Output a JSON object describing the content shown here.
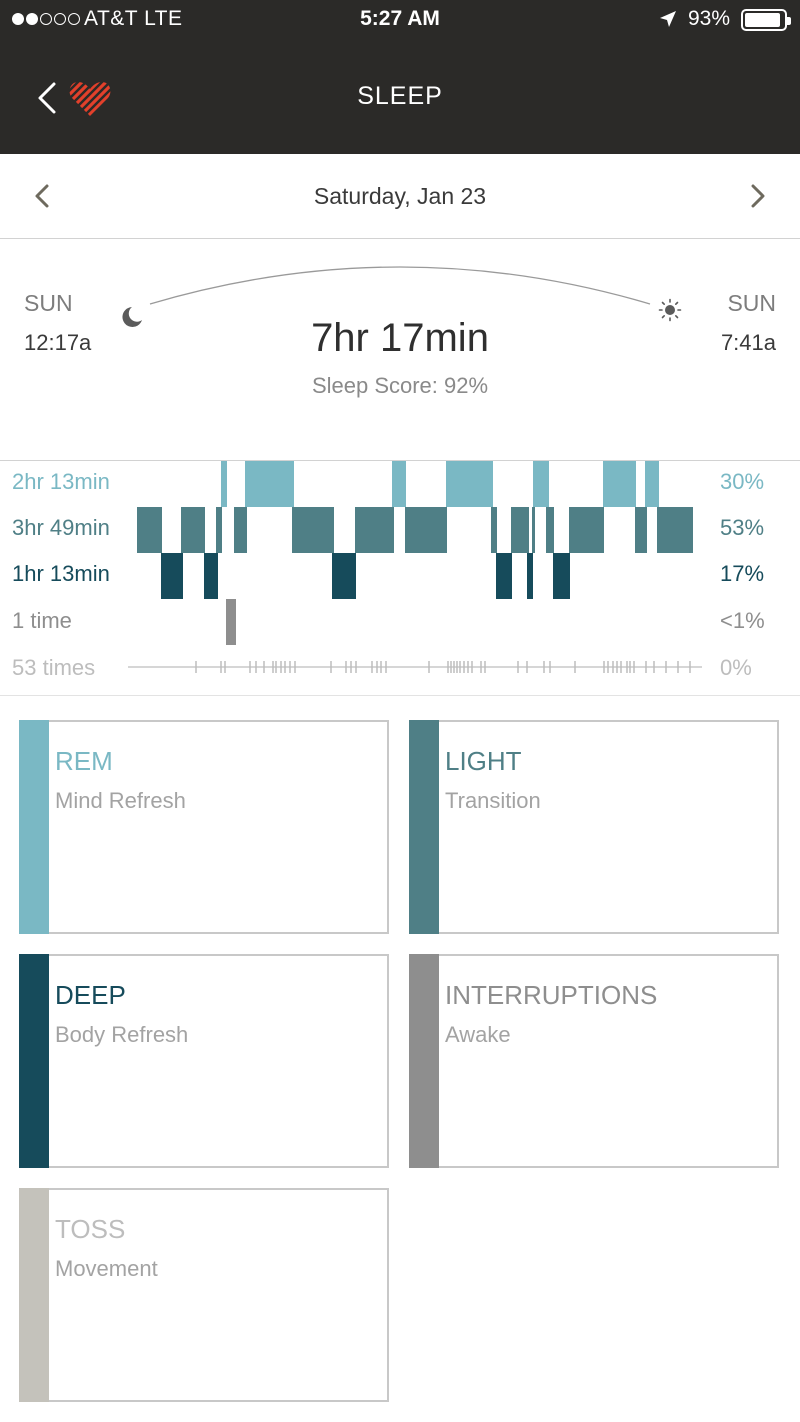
{
  "status_bar": {
    "carrier": "AT&T   LTE",
    "time": "5:27 AM",
    "battery": "93%"
  },
  "nav": {
    "title": "SLEEP"
  },
  "date": {
    "label": "Saturday, Jan 23"
  },
  "summary": {
    "bed_day": "SUN",
    "bed_time": "12:17a",
    "wake_day": "SUN",
    "wake_time": "7:41a",
    "duration": "7hr 17min",
    "score": "Sleep Score: 92%"
  },
  "stages": [
    {
      "key": "rem",
      "duration": "2hr 13min",
      "pct": "30%",
      "color": "#7ab8c4"
    },
    {
      "key": "light",
      "duration": "3hr 49min",
      "pct": "53%",
      "color": "#4f7f86"
    },
    {
      "key": "deep",
      "duration": "1hr 13min",
      "pct": "17%",
      "color": "#164b5b"
    },
    {
      "key": "interruptions",
      "duration": "1 time",
      "pct": "<1%",
      "color": "#8e8e8e"
    },
    {
      "key": "toss",
      "duration": "53 times",
      "pct": "0%",
      "color": "#bdbdbd"
    }
  ],
  "cards": [
    {
      "title": "REM",
      "subtitle": "Mind Refresh",
      "color": "#7ab8c4"
    },
    {
      "title": "LIGHT",
      "subtitle": "Transition",
      "color": "#4f7f86"
    },
    {
      "title": "DEEP",
      "subtitle": "Body Refresh",
      "color": "#164b5b"
    },
    {
      "title": "INTERRUPTIONS",
      "subtitle": "Awake",
      "color": "#8e8e8e"
    },
    {
      "title": "TOSS",
      "subtitle": "Movement",
      "color": "#c4c2bb"
    }
  ]
}
